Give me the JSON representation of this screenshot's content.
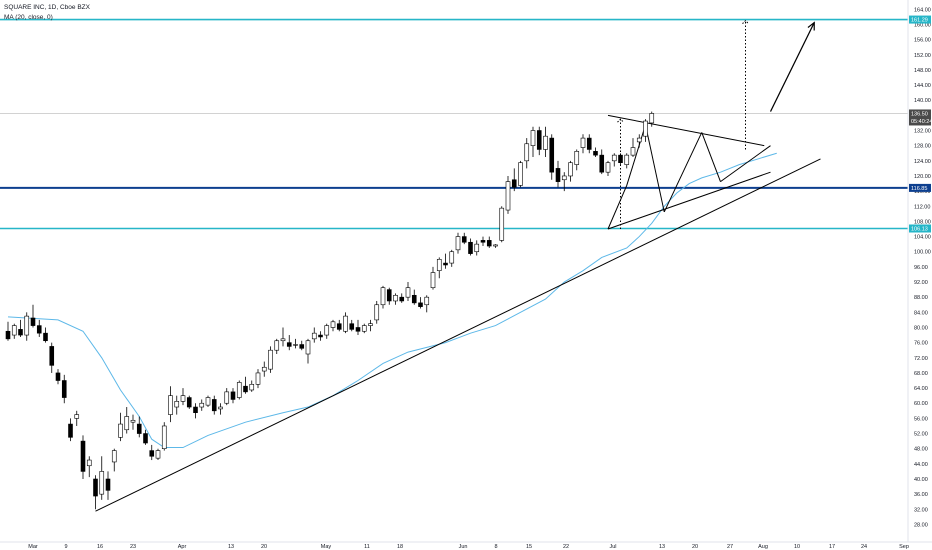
{
  "legend": {
    "title": "SQUARE INC, 1D, Cboe BZX",
    "indicator": "MA (20, close, 0)"
  },
  "colors": {
    "background": "#ffffff",
    "candle_up_fill": "#ffffff",
    "candle_down_fill": "#000000",
    "candle_outline": "#000000",
    "ma": "#5db8e8",
    "level_cyan": "#26b6c8",
    "level_navy": "#0d3f8f",
    "trendline": "#000000",
    "price_tag": "#4a4a4a",
    "axis_text": "#131722"
  },
  "chart_data": {
    "type": "candlestick",
    "title": "",
    "xlabel": "",
    "ylabel": "",
    "ylim": [
      28,
      166
    ],
    "y_ticks": [
      "164.00",
      "160.00",
      "156.00",
      "152.00",
      "148.00",
      "144.00",
      "140.00",
      "136.00",
      "132.00",
      "128.00",
      "124.00",
      "120.00",
      "116.00",
      "112.00",
      "108.00",
      "104.00",
      "100.00",
      "96.00",
      "92.00",
      "88.00",
      "84.00",
      "80.00",
      "76.00",
      "72.00",
      "68.00",
      "64.00",
      "60.00",
      "56.00",
      "52.00",
      "48.00",
      "44.00",
      "40.00",
      "36.00",
      "32.00",
      "28.00"
    ],
    "x_ticks": [
      "Mar",
      "9",
      "16",
      "23",
      "Apr",
      "13",
      "20",
      "May",
      "11",
      "18",
      "Jun",
      "8",
      "15",
      "22",
      "Jul",
      "13",
      "20",
      "27",
      "Aug",
      "10",
      "17",
      "24",
      "Sep"
    ],
    "candles": [
      {
        "o": 79.0,
        "h": 81.5,
        "l": 76.5,
        "c": 77.0
      },
      {
        "o": 78.0,
        "h": 81.0,
        "l": 77.0,
        "c": 80.5
      },
      {
        "o": 79.5,
        "h": 82.0,
        "l": 77.5,
        "c": 78.0
      },
      {
        "o": 78.0,
        "h": 84.0,
        "l": 76.5,
        "c": 83.0
      },
      {
        "o": 82.5,
        "h": 86.0,
        "l": 80.0,
        "c": 80.5
      },
      {
        "o": 80.5,
        "h": 82.0,
        "l": 77.5,
        "c": 78.5
      },
      {
        "o": 78.5,
        "h": 80.0,
        "l": 76.0,
        "c": 76.5
      },
      {
        "o": 75.0,
        "h": 76.0,
        "l": 68.0,
        "c": 70.0
      },
      {
        "o": 68.0,
        "h": 69.0,
        "l": 65.0,
        "c": 66.0
      },
      {
        "o": 66.0,
        "h": 67.5,
        "l": 60.0,
        "c": 61.5
      },
      {
        "o": 54.5,
        "h": 56.0,
        "l": 50.0,
        "c": 51.0
      },
      {
        "o": 56.0,
        "h": 58.0,
        "l": 54.0,
        "c": 57.0
      },
      {
        "o": 50.0,
        "h": 51.5,
        "l": 40.0,
        "c": 42.0
      },
      {
        "o": 43.5,
        "h": 46.0,
        "l": 40.5,
        "c": 45.0
      },
      {
        "o": 40.0,
        "h": 41.0,
        "l": 32.0,
        "c": 35.5
      },
      {
        "o": 36.0,
        "h": 46.0,
        "l": 34.5,
        "c": 42.0
      },
      {
        "o": 40.0,
        "h": 42.0,
        "l": 34.5,
        "c": 37.0
      },
      {
        "o": 44.5,
        "h": 48.0,
        "l": 42.0,
        "c": 47.5
      },
      {
        "o": 51.0,
        "h": 57.5,
        "l": 50.0,
        "c": 54.5
      },
      {
        "o": 53.0,
        "h": 59.0,
        "l": 52.0,
        "c": 56.5
      },
      {
        "o": 55.0,
        "h": 57.0,
        "l": 53.0,
        "c": 55.5
      },
      {
        "o": 54.5,
        "h": 56.5,
        "l": 51.0,
        "c": 52.0
      },
      {
        "o": 52.0,
        "h": 53.0,
        "l": 49.0,
        "c": 49.5
      },
      {
        "o": 47.5,
        "h": 49.0,
        "l": 45.0,
        "c": 46.0
      },
      {
        "o": 45.5,
        "h": 48.0,
        "l": 45.0,
        "c": 47.5
      },
      {
        "o": 48.0,
        "h": 55.0,
        "l": 47.5,
        "c": 54.0
      },
      {
        "o": 57.0,
        "h": 64.5,
        "l": 55.0,
        "c": 62.0
      },
      {
        "o": 59.0,
        "h": 62.0,
        "l": 57.0,
        "c": 60.5
      },
      {
        "o": 60.5,
        "h": 64.0,
        "l": 59.5,
        "c": 62.0
      },
      {
        "o": 61.5,
        "h": 62.0,
        "l": 58.5,
        "c": 59.0
      },
      {
        "o": 59.0,
        "h": 60.0,
        "l": 56.0,
        "c": 57.5
      },
      {
        "o": 59.0,
        "h": 61.0,
        "l": 58.0,
        "c": 60.0
      },
      {
        "o": 59.5,
        "h": 62.0,
        "l": 59.0,
        "c": 61.5
      },
      {
        "o": 61.0,
        "h": 62.0,
        "l": 57.0,
        "c": 58.0
      },
      {
        "o": 58.5,
        "h": 60.0,
        "l": 57.0,
        "c": 59.0
      },
      {
        "o": 60.0,
        "h": 64.0,
        "l": 59.5,
        "c": 63.0
      },
      {
        "o": 63.0,
        "h": 64.0,
        "l": 60.0,
        "c": 61.0
      },
      {
        "o": 61.5,
        "h": 66.0,
        "l": 61.0,
        "c": 65.5
      },
      {
        "o": 64.5,
        "h": 67.0,
        "l": 62.5,
        "c": 63.0
      },
      {
        "o": 63.5,
        "h": 66.0,
        "l": 63.0,
        "c": 65.0
      },
      {
        "o": 65.0,
        "h": 69.0,
        "l": 64.0,
        "c": 68.0
      },
      {
        "o": 68.5,
        "h": 71.0,
        "l": 67.0,
        "c": 69.5
      },
      {
        "o": 69.0,
        "h": 75.0,
        "l": 68.0,
        "c": 74.0
      },
      {
        "o": 74.0,
        "h": 77.0,
        "l": 73.0,
        "c": 76.5
      },
      {
        "o": 76.5,
        "h": 80.0,
        "l": 75.0,
        "c": 77.0
      },
      {
        "o": 76.0,
        "h": 78.0,
        "l": 74.0,
        "c": 75.0
      },
      {
        "o": 75.5,
        "h": 77.0,
        "l": 74.5,
        "c": 75.5
      },
      {
        "o": 75.5,
        "h": 76.5,
        "l": 74.0,
        "c": 74.5
      },
      {
        "o": 73.0,
        "h": 77.0,
        "l": 70.5,
        "c": 76.5
      },
      {
        "o": 77.0,
        "h": 80.0,
        "l": 76.0,
        "c": 78.5
      },
      {
        "o": 78.0,
        "h": 79.0,
        "l": 76.5,
        "c": 77.5
      },
      {
        "o": 78.0,
        "h": 81.0,
        "l": 77.0,
        "c": 80.5
      },
      {
        "o": 80.0,
        "h": 82.0,
        "l": 79.0,
        "c": 81.5
      },
      {
        "o": 81.0,
        "h": 82.0,
        "l": 79.0,
        "c": 79.5
      },
      {
        "o": 79.0,
        "h": 84.0,
        "l": 78.5,
        "c": 83.0
      },
      {
        "o": 81.0,
        "h": 82.0,
        "l": 79.0,
        "c": 79.5
      },
      {
        "o": 80.0,
        "h": 82.0,
        "l": 78.0,
        "c": 79.0
      },
      {
        "o": 79.0,
        "h": 81.0,
        "l": 78.5,
        "c": 80.5
      },
      {
        "o": 80.5,
        "h": 82.0,
        "l": 79.0,
        "c": 81.0
      },
      {
        "o": 82.0,
        "h": 87.0,
        "l": 81.0,
        "c": 86.0
      },
      {
        "o": 86.0,
        "h": 91.0,
        "l": 85.0,
        "c": 90.5
      },
      {
        "o": 90.0,
        "h": 90.5,
        "l": 86.0,
        "c": 87.0
      },
      {
        "o": 87.0,
        "h": 89.0,
        "l": 86.0,
        "c": 88.5
      },
      {
        "o": 88.0,
        "h": 89.0,
        "l": 86.5,
        "c": 87.0
      },
      {
        "o": 88.0,
        "h": 92.0,
        "l": 87.0,
        "c": 90.5
      },
      {
        "o": 88.5,
        "h": 90.0,
        "l": 86.0,
        "c": 86.5
      },
      {
        "o": 86.5,
        "h": 88.0,
        "l": 85.0,
        "c": 85.5
      },
      {
        "o": 86.0,
        "h": 88.5,
        "l": 84.0,
        "c": 88.0
      },
      {
        "o": 90.5,
        "h": 96.0,
        "l": 90.0,
        "c": 94.5
      },
      {
        "o": 95.0,
        "h": 98.5,
        "l": 93.0,
        "c": 98.0
      },
      {
        "o": 97.0,
        "h": 99.5,
        "l": 95.5,
        "c": 96.5
      },
      {
        "o": 97.0,
        "h": 100.5,
        "l": 96.0,
        "c": 100.0
      },
      {
        "o": 100.5,
        "h": 105.0,
        "l": 99.5,
        "c": 104.0
      },
      {
        "o": 104.0,
        "h": 105.0,
        "l": 102.0,
        "c": 102.5
      },
      {
        "o": 102.5,
        "h": 103.5,
        "l": 99.0,
        "c": 99.5
      },
      {
        "o": 100.0,
        "h": 103.0,
        "l": 99.0,
        "c": 102.0
      },
      {
        "o": 103.0,
        "h": 104.0,
        "l": 101.5,
        "c": 102.5
      },
      {
        "o": 103.0,
        "h": 104.0,
        "l": 101.0,
        "c": 101.5
      },
      {
        "o": 101.5,
        "h": 102.0,
        "l": 101.0,
        "c": 101.8
      },
      {
        "o": 103.0,
        "h": 112.0,
        "l": 102.5,
        "c": 111.5
      },
      {
        "o": 111.0,
        "h": 120.0,
        "l": 110.0,
        "c": 118.5
      },
      {
        "o": 119.0,
        "h": 122.0,
        "l": 116.0,
        "c": 117.0
      },
      {
        "o": 117.5,
        "h": 124.0,
        "l": 117.0,
        "c": 123.5
      },
      {
        "o": 124.0,
        "h": 130.0,
        "l": 122.0,
        "c": 128.5
      },
      {
        "o": 128.0,
        "h": 133.0,
        "l": 125.0,
        "c": 132.0
      },
      {
        "o": 132.0,
        "h": 133.0,
        "l": 125.5,
        "c": 127.0
      },
      {
        "o": 127.0,
        "h": 133.0,
        "l": 125.0,
        "c": 130.5
      },
      {
        "o": 130.0,
        "h": 131.0,
        "l": 119.0,
        "c": 121.0
      },
      {
        "o": 122.0,
        "h": 124.0,
        "l": 117.0,
        "c": 118.5
      },
      {
        "o": 119.0,
        "h": 121.0,
        "l": 116.0,
        "c": 120.0
      },
      {
        "o": 120.0,
        "h": 124.0,
        "l": 118.5,
        "c": 123.5
      },
      {
        "o": 123.0,
        "h": 127.0,
        "l": 121.5,
        "c": 126.5
      },
      {
        "o": 127.5,
        "h": 131.0,
        "l": 126.0,
        "c": 130.0
      },
      {
        "o": 130.0,
        "h": 131.0,
        "l": 126.0,
        "c": 127.0
      },
      {
        "o": 126.5,
        "h": 127.5,
        "l": 125.0,
        "c": 125.5
      },
      {
        "o": 125.5,
        "h": 127.0,
        "l": 120.5,
        "c": 121.0
      },
      {
        "o": 121.0,
        "h": 124.0,
        "l": 120.0,
        "c": 123.5
      },
      {
        "o": 124.0,
        "h": 126.0,
        "l": 122.5,
        "c": 125.5
      },
      {
        "o": 125.5,
        "h": 126.0,
        "l": 123.0,
        "c": 123.5
      },
      {
        "o": 123.0,
        "h": 126.0,
        "l": 122.0,
        "c": 125.5
      },
      {
        "o": 125.5,
        "h": 130.0,
        "l": 125.0,
        "c": 127.5
      },
      {
        "o": 129.0,
        "h": 131.0,
        "l": 127.5,
        "c": 130.0
      },
      {
        "o": 130.5,
        "h": 135.0,
        "l": 129.0,
        "c": 134.5
      },
      {
        "o": 134.0,
        "h": 137.0,
        "l": 133.0,
        "c": 136.5
      }
    ],
    "ma_series": [
      {
        "x": 0,
        "y": 82.8
      },
      {
        "x": 8,
        "y": 82.0
      },
      {
        "x": 12,
        "y": 79.0
      },
      {
        "x": 15,
        "y": 72.0
      },
      {
        "x": 18,
        "y": 63.5
      },
      {
        "x": 21,
        "y": 56.5
      },
      {
        "x": 23,
        "y": 50.5
      },
      {
        "x": 25,
        "y": 48.3
      },
      {
        "x": 28,
        "y": 48.3
      },
      {
        "x": 32,
        "y": 51.5
      },
      {
        "x": 38,
        "y": 55.0
      },
      {
        "x": 44,
        "y": 57.5
      },
      {
        "x": 48,
        "y": 59.0
      },
      {
        "x": 52,
        "y": 62.0
      },
      {
        "x": 56,
        "y": 66.0
      },
      {
        "x": 60,
        "y": 70.5
      },
      {
        "x": 64,
        "y": 73.5
      },
      {
        "x": 70,
        "y": 76.0
      },
      {
        "x": 74,
        "y": 78.5
      },
      {
        "x": 78,
        "y": 80.5
      },
      {
        "x": 82,
        "y": 84.0
      },
      {
        "x": 86,
        "y": 87.5
      },
      {
        "x": 89,
        "y": 92.0
      },
      {
        "x": 92,
        "y": 95.0
      },
      {
        "x": 95,
        "y": 98.5
      },
      {
        "x": 99,
        "y": 101.0
      },
      {
        "x": 101,
        "y": 104.0
      },
      {
        "x": 103,
        "y": 107.5
      },
      {
        "x": 105,
        "y": 112.0
      },
      {
        "x": 107,
        "y": 115.5
      },
      {
        "x": 109,
        "y": 118.0
      },
      {
        "x": 111,
        "y": 119.5
      },
      {
        "x": 114,
        "y": 121.0
      },
      {
        "x": 117,
        "y": 123.0
      },
      {
        "x": 120,
        "y": 124.5
      },
      {
        "x": 123,
        "y": 126.0
      }
    ],
    "levels": [
      {
        "price": 161.29,
        "label": "161.29",
        "color": "cyan"
      },
      {
        "price": 116.85,
        "label": "116.85",
        "color": "navy"
      },
      {
        "price": 106.13,
        "label": "106.13",
        "color": "cyan"
      }
    ],
    "current_price": {
      "label": "136.50",
      "countdown": "05:40:24"
    },
    "trendlines": [
      {
        "from": {
          "x": 14,
          "y": 31.5
        },
        "to": {
          "x": 130,
          "y": 124.5
        }
      },
      {
        "from": {
          "x": 96,
          "y": 106.0
        },
        "to": {
          "x": 122,
          "y": 121.0
        }
      },
      {
        "from": {
          "x": 96,
          "y": 136.0
        },
        "to": {
          "x": 121,
          "y": 128.0
        }
      },
      {
        "from": {
          "x": 96,
          "y": 106.0
        },
        "to": {
          "x": 99,
          "y": 117.5
        }
      },
      {
        "from": {
          "x": 99,
          "y": 117.5
        },
        "to": {
          "x": 102,
          "y": 133.5
        }
      },
      {
        "from": {
          "x": 102,
          "y": 133.5
        },
        "to": {
          "x": 105,
          "y": 110.5
        }
      },
      {
        "from": {
          "x": 105,
          "y": 110.5
        },
        "to": {
          "x": 111,
          "y": 131.5
        }
      },
      {
        "from": {
          "x": 111,
          "y": 131.5
        },
        "to": {
          "x": 114,
          "y": 118.5
        }
      },
      {
        "from": {
          "x": 114,
          "y": 118.5
        },
        "to": {
          "x": 122,
          "y": 128.0
        }
      }
    ],
    "measure_lines": [
      {
        "x": 98,
        "from": 106.0,
        "to": 135.0
      },
      {
        "x": 118,
        "from": 127.0,
        "to": 161.0
      }
    ],
    "projection_arrow": {
      "from": {
        "x": 122,
        "y": 137.0
      },
      "to": {
        "x": 129,
        "y": 160.5
      }
    },
    "grid": false,
    "legend_position": "top-left"
  }
}
